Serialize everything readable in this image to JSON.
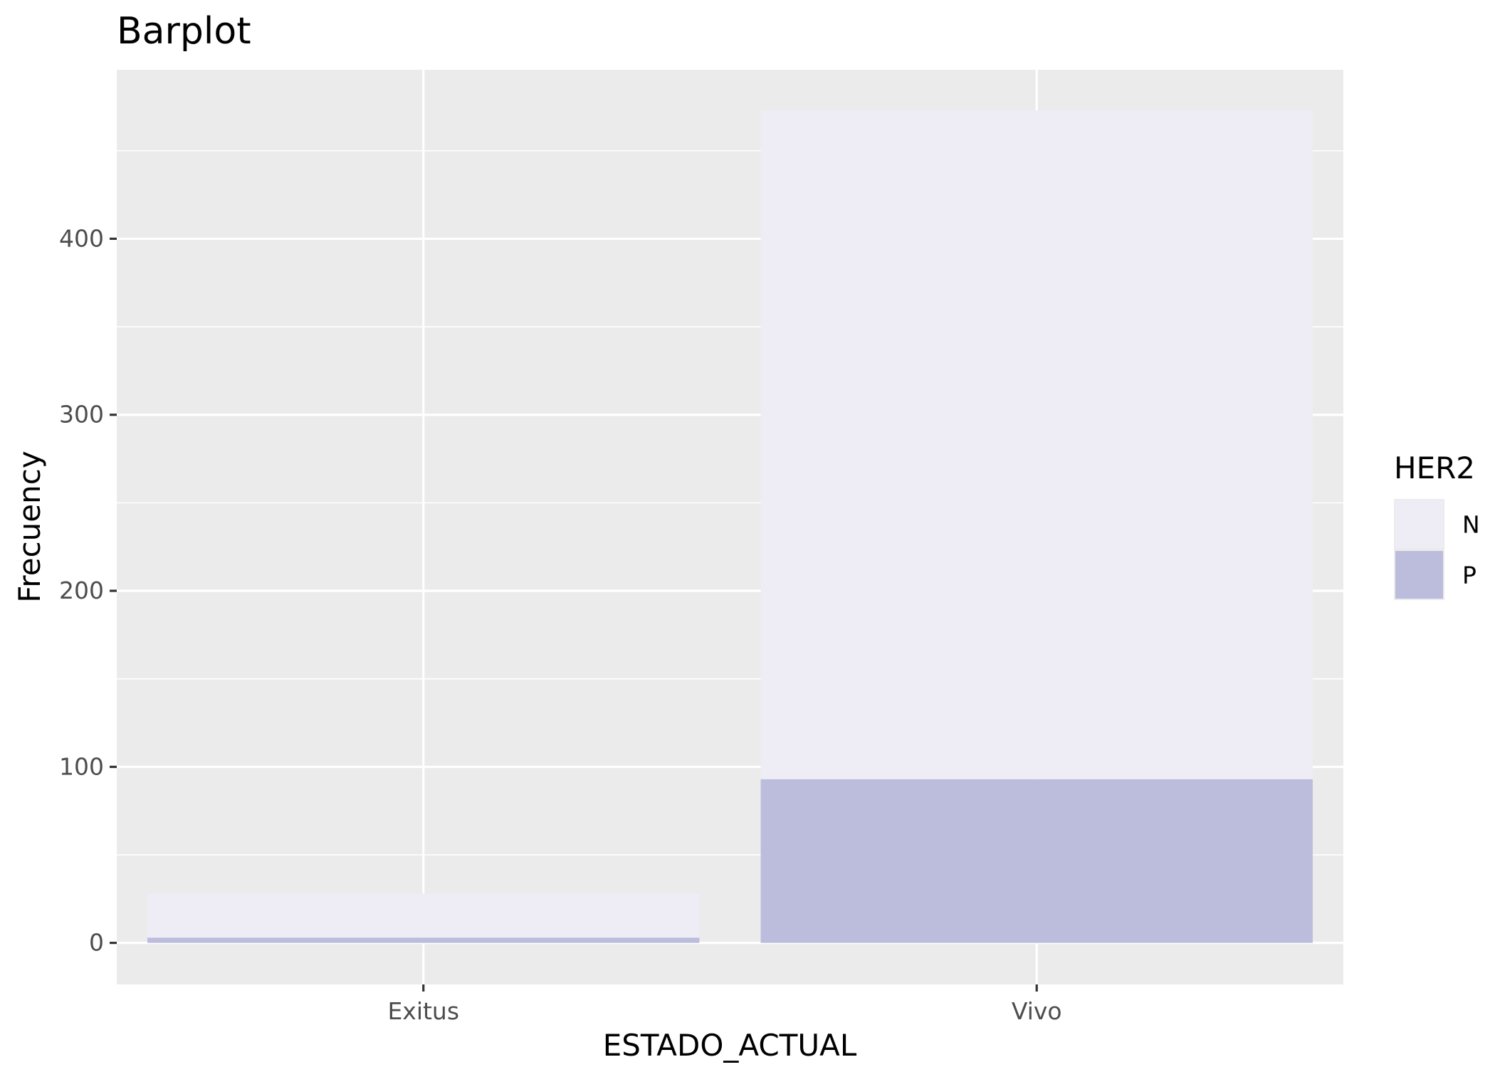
{
  "chart_data": {
    "type": "bar",
    "stacked": true,
    "title": "Barplot",
    "xlabel": "ESTADO_ACTUAL",
    "ylabel": "Frecuency",
    "categories": [
      "Exitus",
      "Vivo"
    ],
    "series": [
      {
        "name": "N",
        "values": [
          25,
          380
        ],
        "color": "#eeedf6"
      },
      {
        "name": "P",
        "values": [
          3,
          93
        ],
        "color": "#bcbddc"
      }
    ],
    "yticks": [
      0,
      100,
      200,
      300,
      400
    ],
    "ylim": [
      -23.6,
      496
    ],
    "legend": {
      "title": "HER2",
      "placement": "right"
    },
    "grid": true,
    "panel_color": "#ebebeb",
    "grid_color": "#ffffff"
  }
}
